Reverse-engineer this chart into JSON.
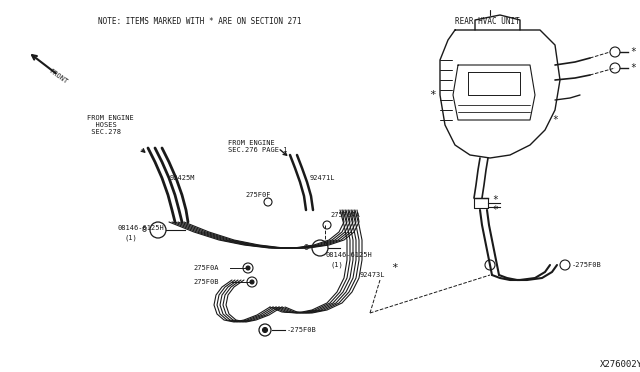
{
  "background_color": "#ffffff",
  "fig_width": 6.4,
  "fig_height": 3.72,
  "dpi": 100,
  "title_note": "NOTE: ITEMS MARKED WITH * ARE ON SECTION 271",
  "rear_hvac_label": "REAR HVAC UNIT",
  "from_engine_label1": "FROM ENGINE\n  HOSES\n SEC.278",
  "from_engine_label2": "FROM ENGINE\nSEC.276 PAGE 1",
  "diagram_id": "X276002Y",
  "front_label": "FRONT",
  "line_color": "#1a1a1a",
  "label_color": "#1a1a1a",
  "font_size_note": 5.5,
  "font_size_small": 5.0,
  "font_size_id": 6.5
}
